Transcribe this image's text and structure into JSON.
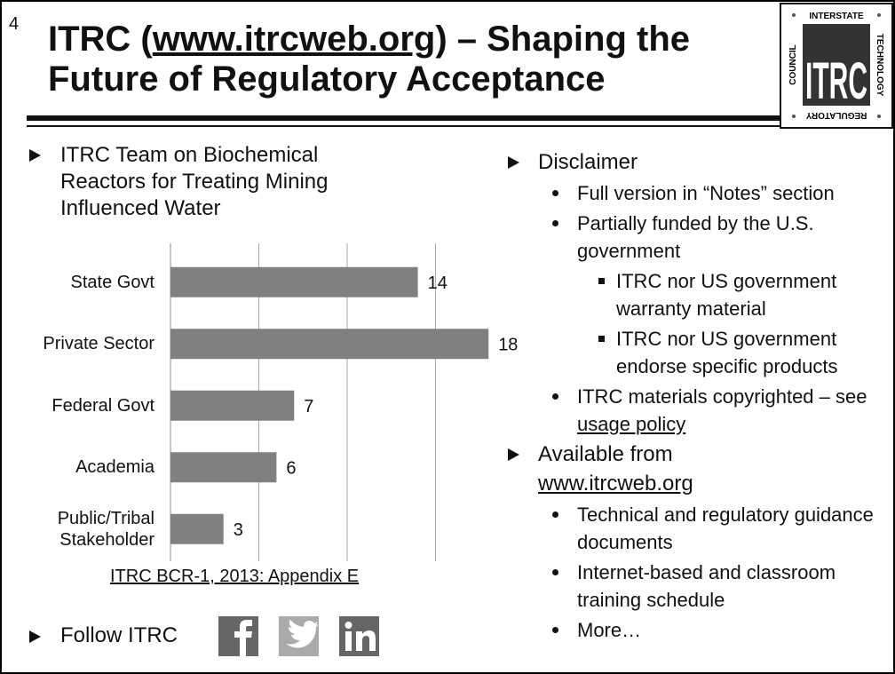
{
  "slide_number": "4",
  "title": {
    "line1_prefix": "ITRC (",
    "line1_link": "www.itrcweb.org",
    "line1_suffix": ") – Shaping the",
    "line2": "Future of Regulatory Acceptance"
  },
  "logo": {
    "top": "INTERSTATE",
    "right": "TECHNOLOGY",
    "bottom": "REGULATORY",
    "left": "COUNCIL",
    "center": "ITRC"
  },
  "left_bullet": "ITRC Team on Biochemical Reactors for Treating Mining Influenced Water",
  "chart_data": {
    "type": "bar",
    "categories": [
      "State Govt",
      "Private Sector",
      "Federal Govt",
      "Academia",
      "Public/Tribal Stakeholder"
    ],
    "values": [
      14,
      18,
      7,
      6,
      3
    ],
    "color": "#808080",
    "xlim": [
      0,
      20
    ],
    "xticks": [
      0,
      5,
      10,
      15
    ],
    "grid": true
  },
  "chart_source": "ITRC BCR-1, 2013: Appendix E",
  "follow": "Follow ITRC",
  "right_items": [
    {
      "level": 1,
      "text": "Disclaimer"
    },
    {
      "level": 2,
      "text": "Full version in “Notes” section"
    },
    {
      "level": 2,
      "text": "Partially funded by the U.S. government"
    },
    {
      "level": 3,
      "text": "ITRC nor US government warranty material"
    },
    {
      "level": 3,
      "text": "ITRC nor US government endorse specific products"
    },
    {
      "level": 2,
      "text": "ITRC materials copyrighted – see ",
      "link": "usage policy"
    },
    {
      "level": 1,
      "text": "Available from",
      "link": "www.itrcweb.org"
    },
    {
      "level": 2,
      "text": "Technical and regulatory guidance documents"
    },
    {
      "level": 2,
      "text": "Internet-based and classroom training schedule"
    },
    {
      "level": 2,
      "text": "More…"
    }
  ]
}
